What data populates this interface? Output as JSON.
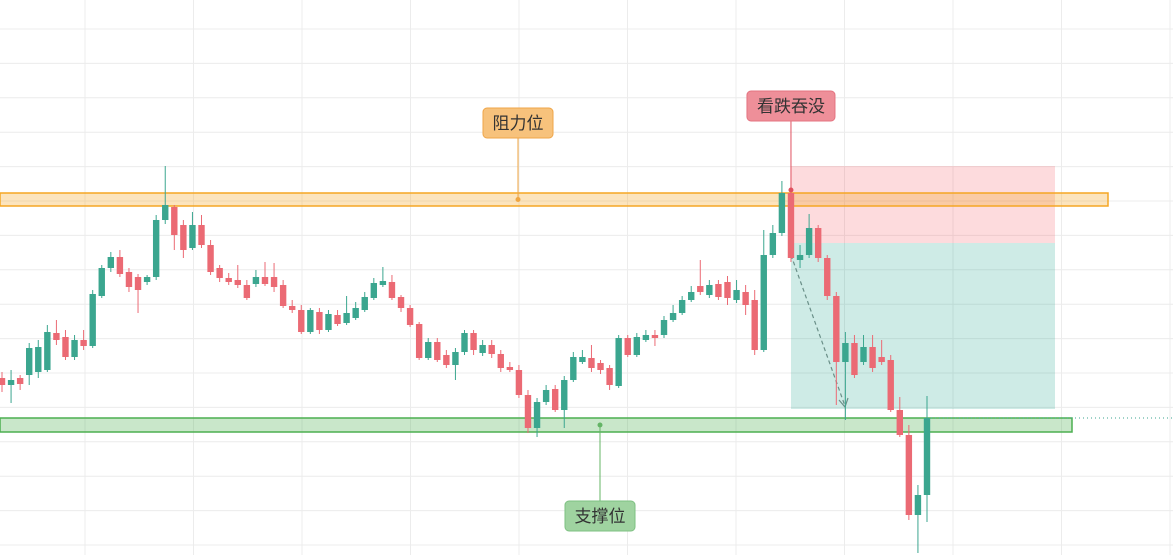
{
  "chart_data": {
    "type": "candlestick",
    "bull_color": "#3ba68f",
    "bear_color": "#eb6a74",
    "ylim": [
      0,
      555
    ],
    "grid": true,
    "open": [
      177,
      170,
      177,
      180,
      183,
      185,
      222,
      218,
      198,
      215,
      209,
      259,
      287,
      298,
      283,
      278,
      273,
      278,
      335,
      348,
      330,
      307,
      330,
      310,
      287,
      277,
      275,
      270,
      271,
      278,
      278,
      270,
      249,
      245,
      223,
      243,
      225,
      240,
      232,
      237,
      245,
      257,
      270,
      273,
      258,
      247,
      231,
      197,
      213,
      200,
      190,
      203,
      222,
      202,
      210,
      201,
      188,
      185,
      160,
      127,
      153,
      166,
      145,
      175,
      193,
      197,
      192,
      187,
      169,
      217,
      200,
      215,
      220,
      220,
      235,
      242,
      255,
      269,
      260,
      271,
      273,
      255,
      263,
      255,
      205,
      300,
      322,
      362,
      295,
      300,
      327,
      297,
      259,
      193,
      212,
      193,
      208,
      198,
      195,
      145,
      120,
      40,
      60
    ],
    "high": [
      183,
      185,
      180,
      212,
      215,
      230,
      235,
      225,
      220,
      225,
      265,
      290,
      303,
      305,
      287,
      281,
      280,
      340,
      389,
      350,
      335,
      343,
      340,
      315,
      290,
      282,
      290,
      275,
      285,
      293,
      292,
      275,
      255,
      250,
      247,
      247,
      245,
      245,
      259,
      253,
      263,
      277,
      288,
      280,
      260,
      250,
      233,
      217,
      217,
      205,
      207,
      225,
      225,
      215,
      215,
      205,
      193,
      190,
      165,
      157,
      170,
      170,
      179,
      203,
      205,
      210,
      195,
      190,
      220,
      220,
      222,
      225,
      225,
      239,
      250,
      259,
      269,
      295,
      275,
      275,
      279,
      275,
      270,
      265,
      325,
      330,
      374,
      365,
      310,
      341,
      330,
      300,
      263,
      223,
      220,
      220,
      220,
      215,
      200,
      158,
      130,
      70,
      159
    ],
    "low": [
      163,
      152,
      165,
      170,
      177,
      183,
      210,
      195,
      195,
      205,
      207,
      257,
      283,
      278,
      263,
      242,
      270,
      275,
      331,
      305,
      297,
      305,
      307,
      280,
      273,
      270,
      267,
      255,
      268,
      269,
      263,
      247,
      242,
      221,
      221,
      221,
      223,
      229,
      230,
      235,
      243,
      255,
      268,
      255,
      243,
      228,
      195,
      195,
      193,
      187,
      175,
      200,
      200,
      199,
      197,
      183,
      183,
      157,
      122,
      118,
      150,
      143,
      127,
      173,
      191,
      183,
      181,
      165,
      167,
      198,
      198,
      213,
      209,
      217,
      233,
      240,
      253,
      260,
      257,
      255,
      250,
      252,
      240,
      200,
      203,
      297,
      319,
      293,
      287,
      297,
      293,
      255,
      150,
      135,
      177,
      190,
      183,
      190,
      143,
      118,
      35,
      2,
      33
    ],
    "close": [
      170,
      175,
      171,
      207,
      208,
      223,
      215,
      198,
      215,
      209,
      261,
      287,
      298,
      281,
      268,
      265,
      278,
      335,
      350,
      320,
      305,
      330,
      310,
      283,
      277,
      273,
      270,
      257,
      278,
      271,
      268,
      249,
      245,
      223,
      245,
      225,
      241,
      231,
      242,
      247,
      258,
      272,
      274,
      257,
      247,
      230,
      197,
      213,
      195,
      190,
      203,
      222,
      205,
      210,
      201,
      187,
      185,
      160,
      127,
      153,
      165,
      145,
      175,
      198,
      198,
      187,
      185,
      170,
      217,
      200,
      218,
      220,
      217,
      235,
      242,
      255,
      263,
      263,
      270,
      258,
      257,
      265,
      250,
      205,
      300,
      322,
      362,
      297,
      300,
      327,
      297,
      259,
      193,
      212,
      180,
      208,
      187,
      193,
      145,
      120,
      40,
      60,
      137
    ],
    "zones": [
      {
        "label": "阻力位",
        "low": 349,
        "high": 362,
        "color": "#f5a623"
      },
      {
        "label": "支撑位",
        "low": 123,
        "high": 137,
        "color": "#4caf50"
      }
    ],
    "position": {
      "label": "看跌吞没",
      "entry": 312,
      "stop": 389,
      "target": 146
    }
  }
}
